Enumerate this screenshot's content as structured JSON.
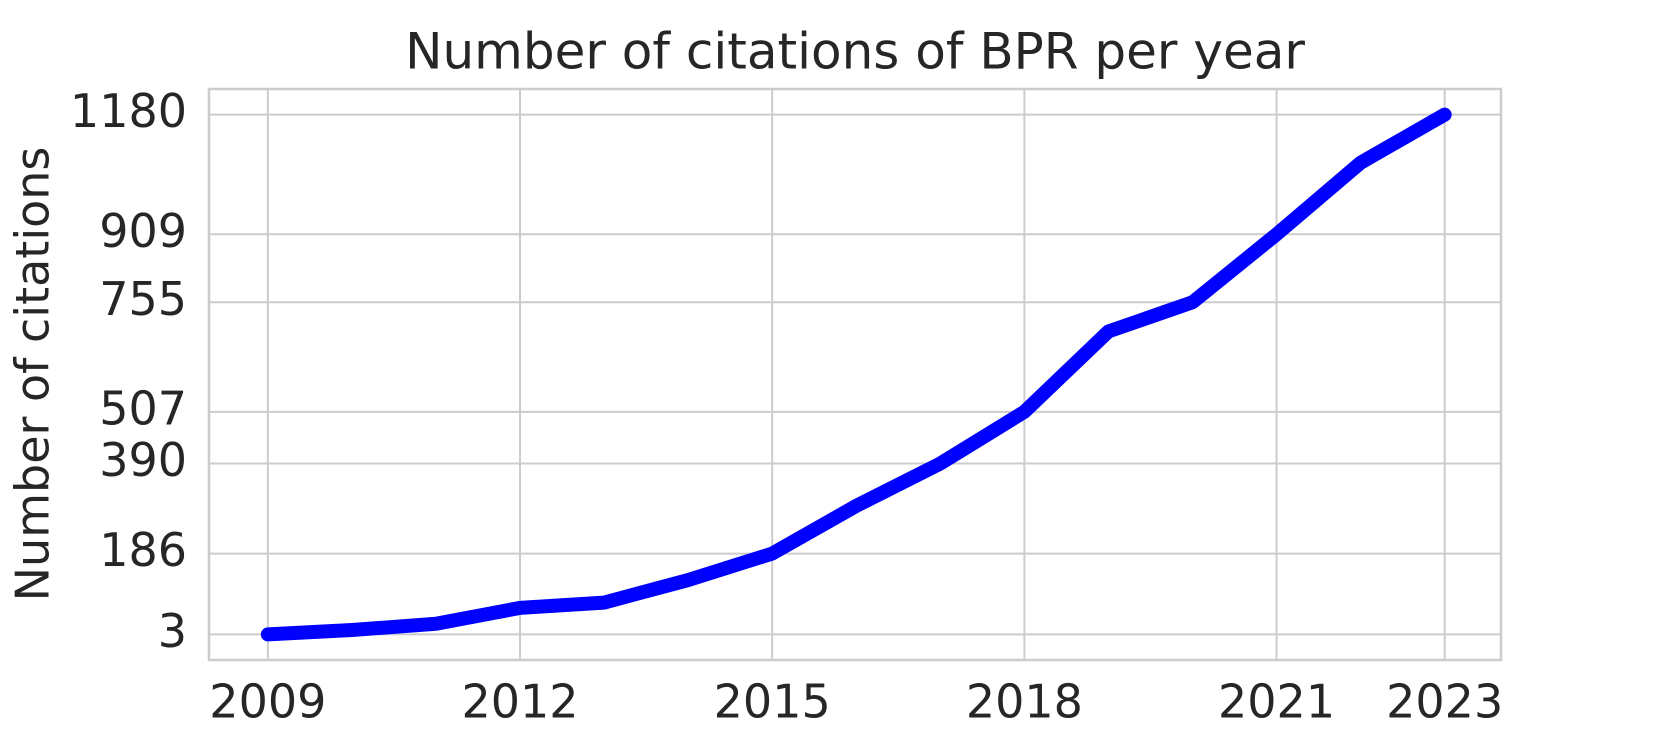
{
  "chart_data": {
    "type": "line",
    "title": "Number of citations of BPR per year",
    "y_label": "Number of citations",
    "x": [
      2009,
      2010,
      2011,
      2012,
      2013,
      2014,
      2015,
      2016,
      2017,
      2018,
      2019,
      2020,
      2021,
      2022,
      2023
    ],
    "series": [
      {
        "color": "#0000ff",
        "values": [
          3,
          13,
          27,
          63,
          75,
          126,
          186,
          294,
          390,
          507,
          689,
          755,
          909,
          1071,
          1180
        ]
      }
    ],
    "xlim": [
      2008.3,
      2023.67
    ],
    "xticks": [
      2009,
      2012,
      2015,
      2018,
      2021,
      2023
    ],
    "ylim": [
      -55,
      1238
    ],
    "yticks": [
      3,
      186,
      390,
      507,
      755,
      909,
      1180
    ],
    "grid": true
  }
}
